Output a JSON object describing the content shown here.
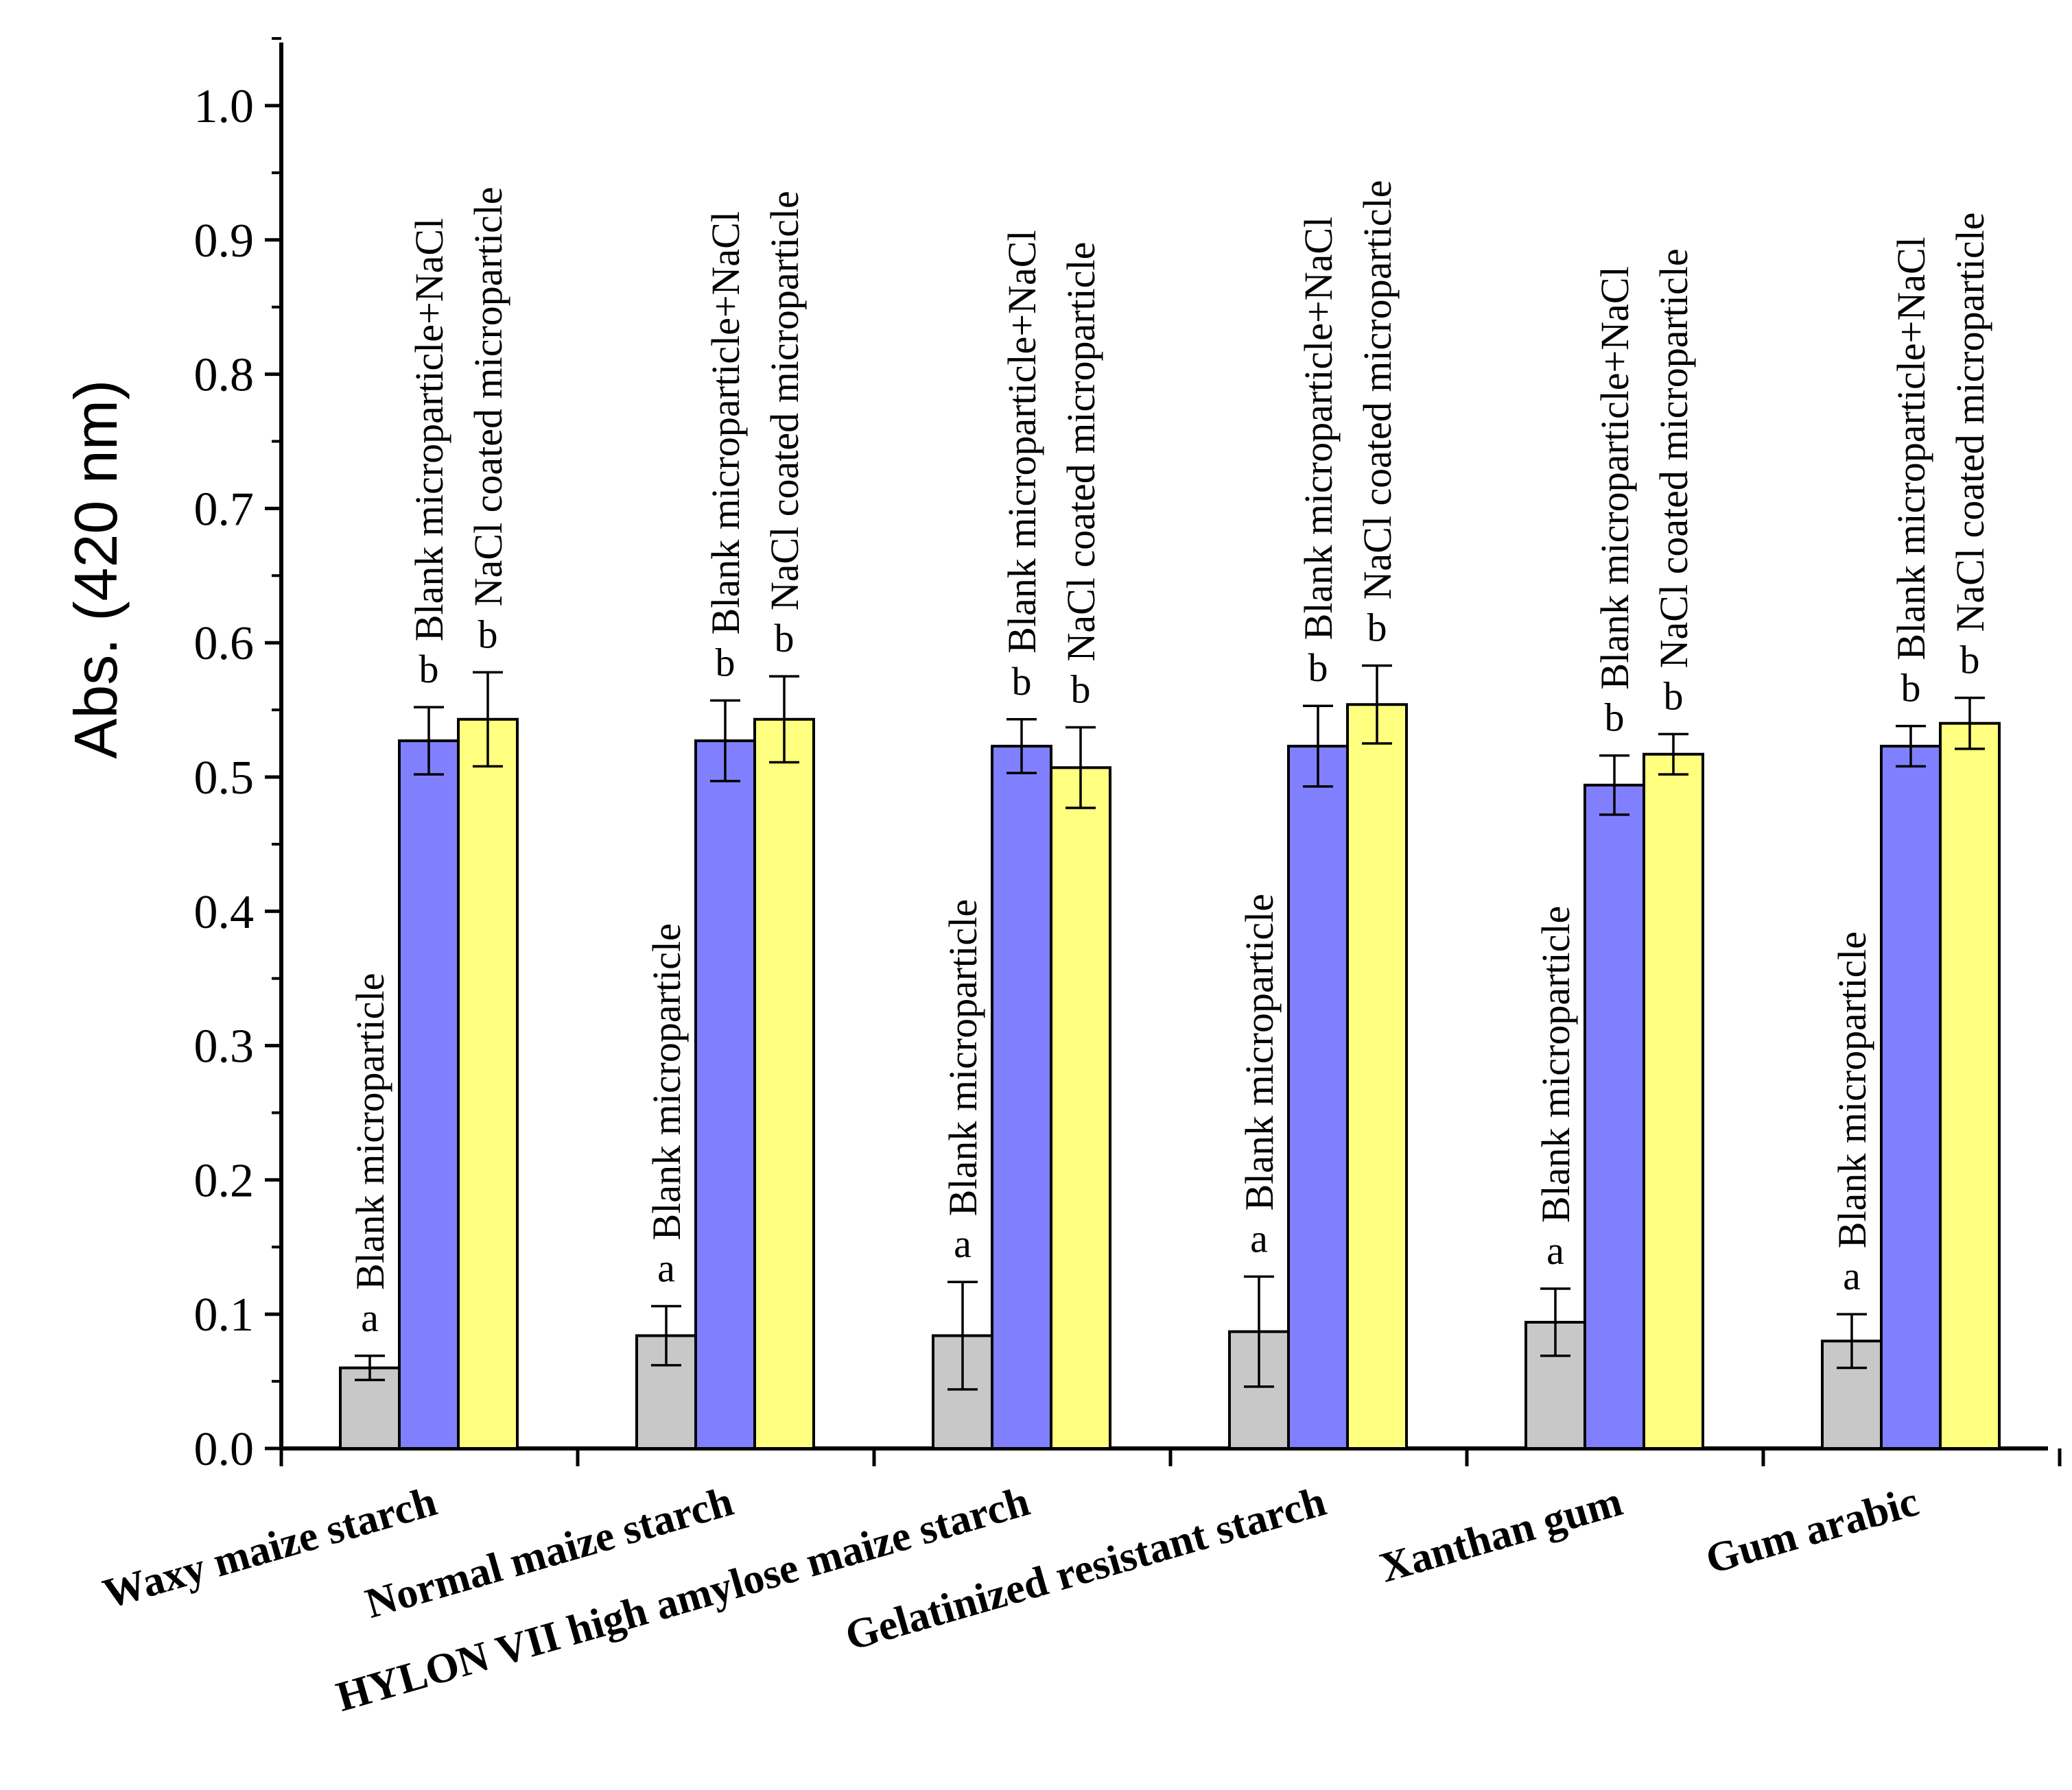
{
  "chart_data": {
    "type": "bar",
    "title": "",
    "xlabel": "",
    "ylabel": "Abs. (420 nm)",
    "ylim": [
      0,
      1.05
    ],
    "yticks": [
      "0.0",
      "0.1",
      "0.2",
      "0.3",
      "0.4",
      "0.5",
      "0.6",
      "0.7",
      "0.8",
      "0.9",
      "1.0"
    ],
    "categories": [
      "Waxy maize starch",
      "Normal maize starch",
      "HYLON VII high amylose maize starch",
      "Gelatinized resistant starch",
      "Xanthan gum",
      "Gum arabic"
    ],
    "series": [
      {
        "name": "Blank microparticle",
        "color": "#c8c8c8",
        "values": [
          0.06,
          0.084,
          0.084,
          0.087,
          0.094,
          0.08
        ],
        "errors": [
          0.009,
          0.022,
          0.04,
          0.041,
          0.025,
          0.02
        ],
        "labels": [
          "a",
          "a",
          "a",
          "a",
          "a",
          "a"
        ]
      },
      {
        "name": "Blank microparticle+NaCl",
        "color": "#8080ff",
        "values": [
          0.527,
          0.527,
          0.523,
          0.523,
          0.494,
          0.523
        ],
        "errors": [
          0.025,
          0.03,
          0.02,
          0.03,
          0.022,
          0.015
        ],
        "labels": [
          "b",
          "b",
          "b",
          "b",
          "b",
          "b"
        ]
      },
      {
        "name": "NaCl coated microparticle",
        "color": "#ffff80",
        "values": [
          0.543,
          0.543,
          0.507,
          0.554,
          0.517,
          0.54
        ],
        "errors": [
          0.035,
          0.032,
          0.03,
          0.029,
          0.015,
          0.019
        ],
        "labels": [
          "b",
          "b",
          "b",
          "b",
          "b",
          "b"
        ]
      }
    ]
  }
}
